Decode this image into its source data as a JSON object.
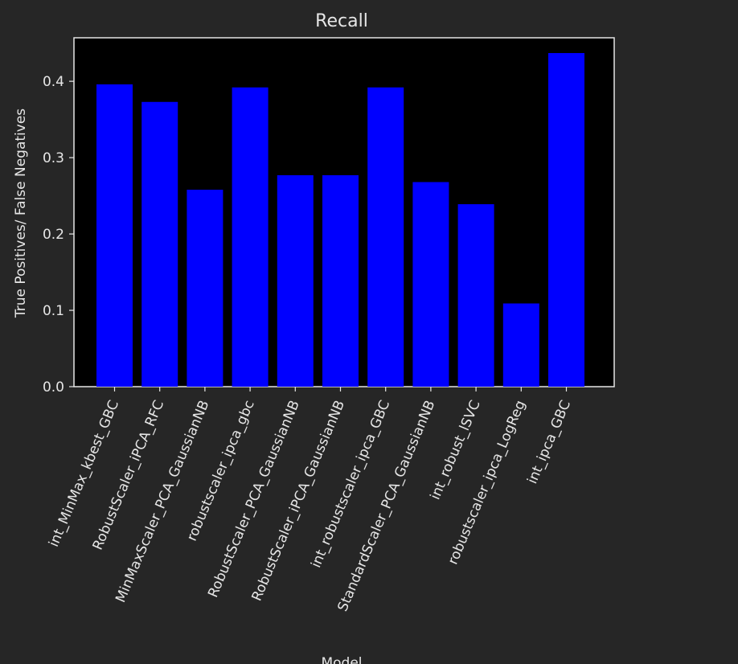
{
  "chart_data": {
    "type": "bar",
    "title": "Recall",
    "xlabel": "Model",
    "ylabel": "True Positives/ False Negatives",
    "categories": [
      "int_MinMax_kbest_GBC",
      "RobustScaler_iPCA_RFC",
      "MinMaxScaler_PCA_GaussianNB",
      "robustscaler_ipca_gbc",
      "RobustScaler_PCA_GaussianNB",
      "RobustScaler_iPCA_GaussianNB",
      "int_robustscaler_ipca_GBC",
      "StandardScaler_PCA_GaussianNB",
      "int_robust_lSVC",
      "robustscaler_ipca_LogReg",
      "int_ipca_GBC"
    ],
    "values": [
      0.396,
      0.373,
      0.258,
      0.392,
      0.277,
      0.277,
      0.392,
      0.268,
      0.239,
      0.109,
      0.437
    ],
    "ylim": [
      0,
      0.457
    ],
    "yticks": [
      0.0,
      0.1,
      0.2,
      0.3,
      0.4
    ],
    "bar_color": "#0000ff",
    "plot_background": "#000000",
    "figure_background": "#262626",
    "text_color": "#e6e6e6",
    "grid": false
  }
}
